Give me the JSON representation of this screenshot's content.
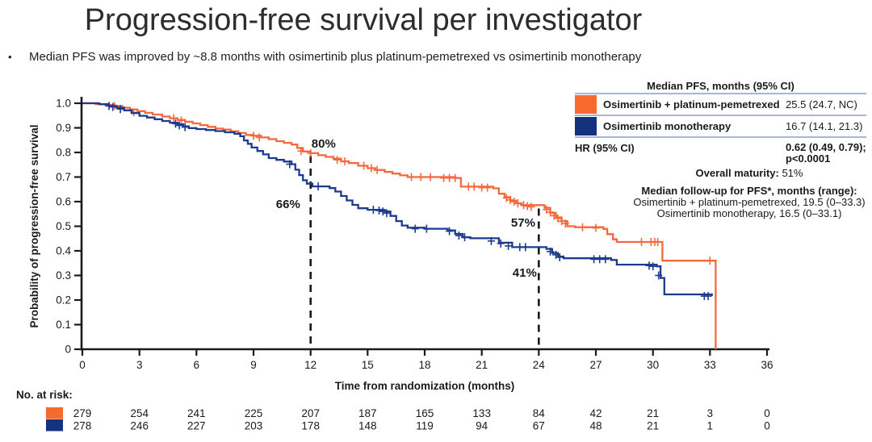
{
  "title": "Progression-free survival per investigator",
  "bullet": {
    "marker": "•",
    "text": "Median PFS was improved by ~8.8 months with osimertinib plus platinum-pemetrexed vs osimertinib monotherapy"
  },
  "colors": {
    "combo": "#F4683C",
    "mono": "#1C3B8E",
    "swatch_combo": "#F8692F",
    "swatch_mono": "#16317E",
    "table_border": "#A8B4D8",
    "axis": "#1A1A1A"
  },
  "legend_table": {
    "header": "Median PFS, months (95% CI)",
    "rows": [
      {
        "label": "Osimertinib + platinum-pemetrexed",
        "value": "25.5 (24.7, NC)",
        "swatch": "combo"
      },
      {
        "label": "Osimertinib monotherapy",
        "value": "16.7 (14.1, 21.3)",
        "swatch": "mono"
      }
    ],
    "hr_label": "HR (95% CI)",
    "hr_value_line1": "0.62 (0.49, 0.79);",
    "hr_value_line2": "p<0.0001"
  },
  "maturity": {
    "label": "Overall maturity:",
    "value": " 51%"
  },
  "followup": {
    "header": "Median follow-up for PFS*, months (range):",
    "line1": "Osimertinib + platinum-pemetrexed, 19.5 (0–33.3)",
    "line2": "Osimertinib monotherapy, 16.5 (0–33.1)"
  },
  "chart_data": {
    "type": "line",
    "subtype": "kaplan-meier-step",
    "xlabel": "Time from randomization (months)",
    "ylabel": "Probability of progression-free survival",
    "xlim": [
      0,
      36
    ],
    "ylim": [
      0,
      1.0
    ],
    "grid": false,
    "xticks": [
      0,
      3,
      6,
      9,
      12,
      15,
      18,
      21,
      24,
      27,
      30,
      33,
      36
    ],
    "yticks": [
      {
        "v": 1.0,
        "label": "1.0"
      },
      {
        "v": 0.9,
        "label": "0.9"
      },
      {
        "v": 0.8,
        "label": "0.8"
      },
      {
        "v": 0.7,
        "label": "0.7"
      },
      {
        "v": 0.6,
        "label": "0.6"
      },
      {
        "v": 0.5,
        "label": "0.5"
      },
      {
        "v": 0.4,
        "label": "0.4"
      },
      {
        "v": 0.3,
        "label": "0.3"
      },
      {
        "v": 0.2,
        "label": "0.2"
      },
      {
        "v": 0.1,
        "label": "0.1"
      },
      {
        "v": 0,
        "label": "0"
      }
    ],
    "reference_lines": [
      {
        "x": 12,
        "s_top": 0.787,
        "style": "dashed"
      },
      {
        "x": 24,
        "s_top": 0.572,
        "style": "dashed"
      }
    ],
    "annotations": [
      {
        "text": "80%",
        "t": 12.05,
        "s": 0.82,
        "series": "combo"
      },
      {
        "text": "66%",
        "t": 10.18,
        "s": 0.574,
        "series": "mono"
      },
      {
        "text": "57%",
        "t": 22.54,
        "s": 0.498,
        "series": "combo"
      },
      {
        "text": "41%",
        "t": 22.62,
        "s": 0.295,
        "series": "mono"
      }
    ],
    "series": [
      {
        "id": "combo",
        "name": "Osimertinib + platinum-pemetrexed",
        "landmarks": {
          "12mo": "80%",
          "24mo": "57%",
          "median": "25.5"
        },
        "points": [
          [
            0,
            1.0
          ],
          [
            0.7,
            0.996
          ],
          [
            1.2,
            0.993
          ],
          [
            1.7,
            0.989
          ],
          [
            2.1,
            0.982
          ],
          [
            2.5,
            0.975
          ],
          [
            2.9,
            0.968
          ],
          [
            3.3,
            0.961
          ],
          [
            3.7,
            0.954
          ],
          [
            4.2,
            0.946
          ],
          [
            4.6,
            0.939
          ],
          [
            5.0,
            0.932
          ],
          [
            5.4,
            0.925
          ],
          [
            5.8,
            0.918
          ],
          [
            6.2,
            0.911
          ],
          [
            6.6,
            0.904
          ],
          [
            7.0,
            0.897
          ],
          [
            7.4,
            0.893
          ],
          [
            7.8,
            0.886
          ],
          [
            8.2,
            0.879
          ],
          [
            8.6,
            0.871
          ],
          [
            9.0,
            0.868
          ],
          [
            9.4,
            0.861
          ],
          [
            9.8,
            0.854
          ],
          [
            10.2,
            0.846
          ],
          [
            10.6,
            0.839
          ],
          [
            11.0,
            0.832
          ],
          [
            11.3,
            0.818
          ],
          [
            11.6,
            0.804
          ],
          [
            12.0,
            0.797
          ],
          [
            12.4,
            0.789
          ],
          [
            12.8,
            0.782
          ],
          [
            13.2,
            0.775
          ],
          [
            13.6,
            0.764
          ],
          [
            14.0,
            0.757
          ],
          [
            14.5,
            0.746
          ],
          [
            15.0,
            0.736
          ],
          [
            15.4,
            0.729
          ],
          [
            15.9,
            0.721
          ],
          [
            16.3,
            0.714
          ],
          [
            16.7,
            0.707
          ],
          [
            17.1,
            0.7
          ],
          [
            19.6,
            0.696
          ],
          [
            19.9,
            0.661
          ],
          [
            21.6,
            0.654
          ],
          [
            21.9,
            0.632
          ],
          [
            22.2,
            0.618
          ],
          [
            22.5,
            0.604
          ],
          [
            22.8,
            0.593
          ],
          [
            23.1,
            0.586
          ],
          [
            24.3,
            0.575
          ],
          [
            24.6,
            0.554
          ],
          [
            24.9,
            0.536
          ],
          [
            25.2,
            0.521
          ],
          [
            25.5,
            0.5
          ],
          [
            25.9,
            0.496
          ],
          [
            27.4,
            0.489
          ],
          [
            27.6,
            0.468
          ],
          [
            27.9,
            0.447
          ],
          [
            28.1,
            0.436
          ],
          [
            30.5,
            0.36
          ],
          [
            33.25,
            0.36
          ],
          [
            33.3,
            0.0
          ]
        ],
        "censors": [
          [
            1.7,
            0.989
          ],
          [
            2.7,
            0.963
          ],
          [
            4.8,
            0.939
          ],
          [
            5.2,
            0.93
          ],
          [
            9.0,
            0.868
          ],
          [
            9.3,
            0.861
          ],
          [
            11.5,
            0.806
          ],
          [
            12.0,
            0.797
          ],
          [
            13.4,
            0.77
          ],
          [
            13.8,
            0.764
          ],
          [
            14.8,
            0.746
          ],
          [
            15.2,
            0.736
          ],
          [
            15.5,
            0.729
          ],
          [
            17.3,
            0.7
          ],
          [
            17.8,
            0.7
          ],
          [
            18.3,
            0.7
          ],
          [
            19.0,
            0.696
          ],
          [
            19.3,
            0.696
          ],
          [
            19.6,
            0.696
          ],
          [
            20.3,
            0.661
          ],
          [
            20.6,
            0.661
          ],
          [
            21.0,
            0.657
          ],
          [
            21.3,
            0.657
          ],
          [
            22.3,
            0.615
          ],
          [
            22.5,
            0.607
          ],
          [
            22.7,
            0.6
          ],
          [
            22.9,
            0.593
          ],
          [
            23.2,
            0.586
          ],
          [
            23.4,
            0.582
          ],
          [
            23.6,
            0.579
          ],
          [
            24.4,
            0.568
          ],
          [
            24.6,
            0.557
          ],
          [
            24.8,
            0.543
          ],
          [
            25.0,
            0.532
          ],
          [
            25.2,
            0.521
          ],
          [
            25.4,
            0.511
          ],
          [
            26.3,
            0.496
          ],
          [
            27.0,
            0.493
          ],
          [
            29.4,
            0.436
          ],
          [
            29.9,
            0.436
          ],
          [
            30.1,
            0.436
          ],
          [
            30.25,
            0.436
          ],
          [
            33.0,
            0.36
          ]
        ]
      },
      {
        "id": "mono",
        "name": "Osimertinib monotherapy",
        "landmarks": {
          "12mo": "66%",
          "24mo": "41%",
          "median": "16.7"
        },
        "points": [
          [
            0,
            1.0
          ],
          [
            0.9,
            0.996
          ],
          [
            1.4,
            0.989
          ],
          [
            1.8,
            0.982
          ],
          [
            2.2,
            0.971
          ],
          [
            2.6,
            0.96
          ],
          [
            3.0,
            0.949
          ],
          [
            3.4,
            0.942
          ],
          [
            3.8,
            0.935
          ],
          [
            4.2,
            0.928
          ],
          [
            4.6,
            0.921
          ],
          [
            5.0,
            0.914
          ],
          [
            5.3,
            0.906
          ],
          [
            5.6,
            0.899
          ],
          [
            6.0,
            0.895
          ],
          [
            6.5,
            0.891
          ],
          [
            7.0,
            0.887
          ],
          [
            7.5,
            0.882
          ],
          [
            8.0,
            0.876
          ],
          [
            8.3,
            0.866
          ],
          [
            8.5,
            0.849
          ],
          [
            8.7,
            0.835
          ],
          [
            8.9,
            0.82
          ],
          [
            9.2,
            0.806
          ],
          [
            9.5,
            0.792
          ],
          [
            9.8,
            0.777
          ],
          [
            10.2,
            0.77
          ],
          [
            10.6,
            0.763
          ],
          [
            11.0,
            0.752
          ],
          [
            11.2,
            0.73
          ],
          [
            11.4,
            0.708
          ],
          [
            11.6,
            0.687
          ],
          [
            11.8,
            0.673
          ],
          [
            12.1,
            0.662
          ],
          [
            13.0,
            0.655
          ],
          [
            13.3,
            0.641
          ],
          [
            13.6,
            0.623
          ],
          [
            13.9,
            0.605
          ],
          [
            14.2,
            0.587
          ],
          [
            14.5,
            0.573
          ],
          [
            15.0,
            0.567
          ],
          [
            15.9,
            0.56
          ],
          [
            16.2,
            0.542
          ],
          [
            16.5,
            0.521
          ],
          [
            16.8,
            0.503
          ],
          [
            17.1,
            0.494
          ],
          [
            18.0,
            0.49
          ],
          [
            19.2,
            0.483
          ],
          [
            19.6,
            0.469
          ],
          [
            20.0,
            0.455
          ],
          [
            20.4,
            0.451
          ],
          [
            21.9,
            0.433
          ],
          [
            22.6,
            0.415
          ],
          [
            24.4,
            0.408
          ],
          [
            24.7,
            0.391
          ],
          [
            25.0,
            0.377
          ],
          [
            25.3,
            0.37
          ],
          [
            27.8,
            0.363
          ],
          [
            28.1,
            0.344
          ],
          [
            30.2,
            0.337
          ],
          [
            30.4,
            0.29
          ],
          [
            30.6,
            0.223
          ],
          [
            33.1,
            0.216
          ]
        ],
        "censors": [
          [
            1.4,
            0.989
          ],
          [
            1.6,
            0.985
          ],
          [
            2.0,
            0.976
          ],
          [
            4.9,
            0.917
          ],
          [
            5.1,
            0.91
          ],
          [
            5.4,
            0.903
          ],
          [
            10.9,
            0.752
          ],
          [
            12.4,
            0.662
          ],
          [
            15.3,
            0.567
          ],
          [
            15.6,
            0.564
          ],
          [
            15.8,
            0.56
          ],
          [
            16.0,
            0.553
          ],
          [
            17.5,
            0.49
          ],
          [
            18.1,
            0.49
          ],
          [
            19.3,
            0.48
          ],
          [
            19.8,
            0.462
          ],
          [
            20.1,
            0.455
          ],
          [
            21.5,
            0.44
          ],
          [
            22.0,
            0.43
          ],
          [
            22.4,
            0.42
          ],
          [
            23.0,
            0.415
          ],
          [
            23.3,
            0.415
          ],
          [
            24.6,
            0.397
          ],
          [
            24.9,
            0.384
          ],
          [
            25.1,
            0.374
          ],
          [
            26.9,
            0.366
          ],
          [
            27.2,
            0.366
          ],
          [
            27.5,
            0.366
          ],
          [
            29.8,
            0.34
          ],
          [
            30.0,
            0.337
          ],
          [
            30.3,
            0.3
          ],
          [
            32.7,
            0.216
          ],
          [
            32.9,
            0.216
          ]
        ]
      }
    ]
  },
  "risk_table": {
    "label": "No. at risk:",
    "times": [
      0,
      3,
      6,
      9,
      12,
      15,
      18,
      21,
      24,
      27,
      30,
      33,
      36
    ],
    "rows": [
      {
        "series": "combo",
        "values": [
          279,
          254,
          241,
          225,
          207,
          187,
          165,
          133,
          84,
          42,
          21,
          3,
          0
        ]
      },
      {
        "series": "mono",
        "values": [
          278,
          246,
          227,
          203,
          178,
          148,
          119,
          94,
          67,
          48,
          21,
          1,
          0
        ]
      }
    ]
  }
}
